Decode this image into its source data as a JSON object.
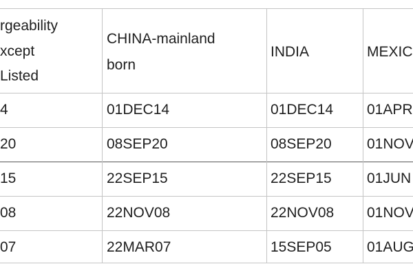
{
  "table": {
    "header": [
      [
        "rgeability",
        "xcept",
        "Listed"
      ],
      [
        "CHINA-mainland",
        "born"
      ],
      [
        "INDIA"
      ],
      [
        "MEXIC"
      ]
    ],
    "rows": [
      [
        "4",
        "01DEC14",
        "01DEC14",
        "01APR"
      ],
      [
        "20",
        "08SEP20",
        "08SEP20",
        "01NOV"
      ],
      [
        "15",
        "22SEP15",
        "22SEP15",
        "01JUN"
      ],
      [
        "08",
        "22NOV08",
        "22NOV08",
        "01NOV"
      ],
      [
        "07",
        "22MAR07",
        "15SEP05",
        "01AUG"
      ]
    ]
  }
}
